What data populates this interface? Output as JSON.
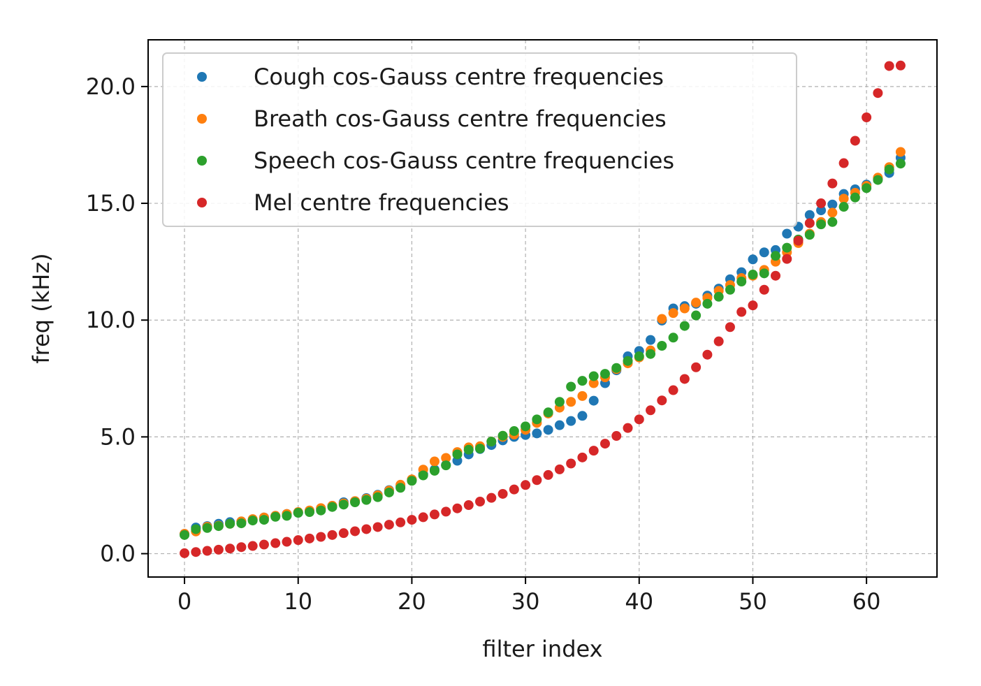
{
  "chart_data": {
    "type": "scatter",
    "title": "",
    "xlabel": "filter index",
    "ylabel": "freq (kHz)",
    "xlim": [
      -3.2,
      66.2
    ],
    "ylim": [
      -1.0,
      22.0
    ],
    "xticks": [
      0,
      10,
      20,
      30,
      40,
      50,
      60
    ],
    "yticks": [
      0.0,
      5.0,
      10.0,
      15.0,
      20.0
    ],
    "xtick_labels": [
      "0",
      "10",
      "20",
      "30",
      "40",
      "50",
      "60"
    ],
    "ytick_labels": [
      "0.0",
      "5.0",
      "10.0",
      "15.0",
      "20.0"
    ],
    "grid": true,
    "legend_position": "top-left",
    "series": [
      {
        "name": "Cough cos-Gauss centre frequencies",
        "color": "#1f77b4",
        "values": [
          0.85,
          1.12,
          1.18,
          1.28,
          1.35,
          1.38,
          1.45,
          1.55,
          1.62,
          1.7,
          1.75,
          1.83,
          1.92,
          2.05,
          2.2,
          2.25,
          2.38,
          2.52,
          2.72,
          2.9,
          3.15,
          3.4,
          3.6,
          3.8,
          3.98,
          4.25,
          4.48,
          4.65,
          4.85,
          5.0,
          5.08,
          5.15,
          5.3,
          5.5,
          5.68,
          5.9,
          6.55,
          7.3,
          7.85,
          8.45,
          8.68,
          9.15,
          9.98,
          10.5,
          10.6,
          10.7,
          11.05,
          11.35,
          11.75,
          12.05,
          12.6,
          12.9,
          13.0,
          13.7,
          14.0,
          14.5,
          14.7,
          14.95,
          15.4,
          15.6,
          15.8,
          16.05,
          16.3,
          16.95
        ]
      },
      {
        "name": "Breath cos-Gauss centre frequencies",
        "color": "#ff7f0e",
        "values": [
          0.85,
          0.95,
          1.15,
          1.2,
          1.28,
          1.38,
          1.48,
          1.55,
          1.62,
          1.7,
          1.78,
          1.85,
          1.95,
          2.05,
          2.15,
          2.25,
          2.35,
          2.5,
          2.7,
          2.95,
          3.18,
          3.6,
          3.95,
          4.1,
          4.35,
          4.55,
          4.6,
          4.8,
          5.0,
          5.1,
          5.3,
          5.6,
          6.0,
          6.25,
          6.5,
          6.75,
          7.3,
          7.55,
          7.9,
          8.15,
          8.4,
          8.7,
          10.05,
          10.3,
          10.5,
          10.75,
          10.95,
          11.25,
          11.5,
          11.8,
          11.9,
          12.15,
          12.5,
          12.9,
          13.3,
          13.7,
          14.2,
          14.6,
          15.2,
          15.45,
          15.75,
          16.1,
          16.55,
          17.2
        ]
      },
      {
        "name": "Speech cos-Gauss centre frequencies",
        "color": "#2ca02c",
        "values": [
          0.8,
          1.05,
          1.1,
          1.18,
          1.28,
          1.3,
          1.42,
          1.45,
          1.58,
          1.62,
          1.75,
          1.78,
          1.85,
          2.0,
          2.1,
          2.2,
          2.3,
          2.42,
          2.62,
          2.82,
          3.12,
          3.35,
          3.55,
          3.78,
          4.25,
          4.45,
          4.5,
          4.8,
          5.05,
          5.25,
          5.45,
          5.75,
          6.05,
          6.5,
          7.15,
          7.4,
          7.6,
          7.7,
          7.95,
          8.25,
          8.45,
          8.55,
          8.9,
          9.25,
          9.75,
          10.2,
          10.7,
          11.0,
          11.3,
          11.65,
          11.95,
          12.0,
          12.75,
          13.1,
          13.45,
          13.65,
          14.1,
          14.2,
          14.85,
          15.25,
          15.65,
          16.0,
          16.45,
          16.7
        ]
      },
      {
        "name": "Mel centre frequencies",
        "color": "#d62728",
        "values": [
          0.02,
          0.07,
          0.12,
          0.17,
          0.22,
          0.28,
          0.33,
          0.39,
          0.45,
          0.51,
          0.58,
          0.65,
          0.72,
          0.8,
          0.88,
          0.96,
          1.05,
          1.14,
          1.24,
          1.34,
          1.45,
          1.56,
          1.68,
          1.8,
          1.94,
          2.08,
          2.23,
          2.39,
          2.56,
          2.75,
          2.94,
          3.15,
          3.37,
          3.61,
          3.86,
          4.12,
          4.41,
          4.71,
          5.04,
          5.38,
          5.75,
          6.14,
          6.56,
          7.0,
          7.48,
          7.98,
          8.52,
          9.09,
          9.7,
          10.35,
          10.63,
          11.3,
          11.9,
          12.62,
          13.4,
          14.15,
          15.0,
          15.85,
          16.72,
          17.68,
          18.68,
          19.72,
          20.88,
          20.9
        ]
      }
    ]
  }
}
